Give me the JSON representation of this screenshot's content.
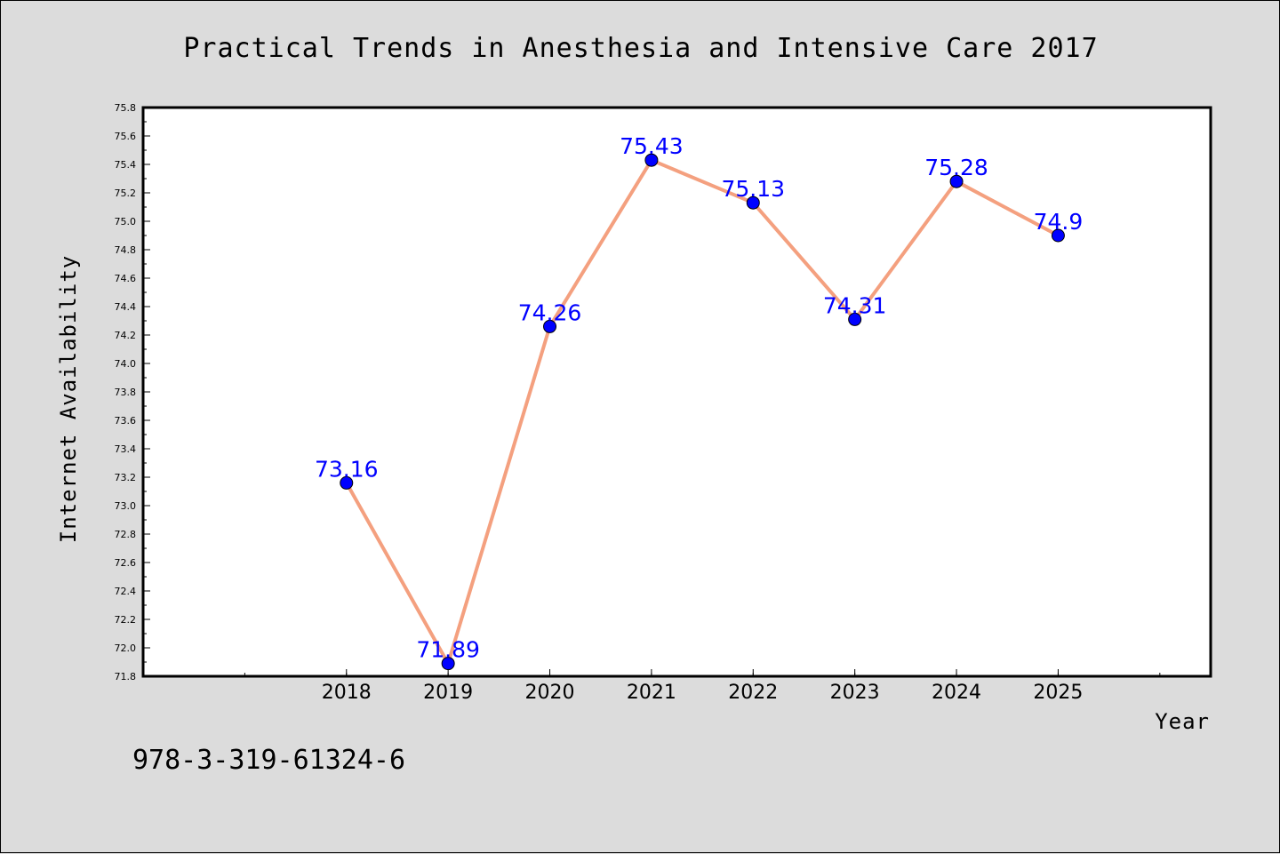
{
  "chart_data": {
    "type": "line",
    "title": "Practical Trends in Anesthesia and Intensive Care 2017",
    "xlabel": "Year",
    "ylabel": "Internet Availability",
    "x": [
      2018,
      2019,
      2020,
      2021,
      2022,
      2023,
      2024,
      2025
    ],
    "x_tick_labels": [
      "2018",
      "2019",
      "2020",
      "2021",
      "2022",
      "2023",
      "2024",
      "2025"
    ],
    "xlim": [
      2016,
      2026.5
    ],
    "values": [
      73.16,
      71.89,
      74.26,
      75.43,
      75.13,
      74.31,
      75.28,
      74.9
    ],
    "data_labels": [
      "73.16",
      "71.89",
      "74.26",
      "75.43",
      "75.13",
      "74.31",
      "75.28",
      "74.9"
    ],
    "ylim": [
      71.8,
      75.8
    ],
    "y_tick_labels": [
      "71.8",
      "72.0",
      "72.2",
      "72.4",
      "72.6",
      "72.8",
      "73.0",
      "73.2",
      "73.4",
      "73.6",
      "73.8",
      "74.0",
      "74.2",
      "74.4",
      "74.6",
      "74.8",
      "75.0",
      "75.2",
      "75.4",
      "75.6",
      "75.8"
    ],
    "grid": false,
    "line_color": "#f4a07f",
    "marker_color": "#0000ff",
    "label_color": "#0000ff"
  },
  "footer": {
    "isbn": "978-3-319-61324-6"
  }
}
